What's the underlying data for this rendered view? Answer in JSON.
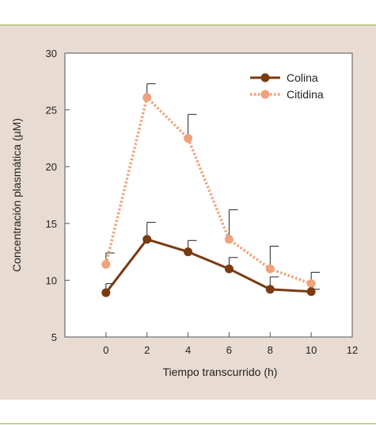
{
  "chart_data": {
    "type": "line",
    "xlabel": "Tiempo transcurrido (h)",
    "ylabel": "Concentración plasmática (µM)",
    "xlim": [
      -2,
      12
    ],
    "ylim": [
      5,
      30
    ],
    "xticks": [
      "0",
      "2",
      "4",
      "6",
      "8",
      "10",
      "12"
    ],
    "yticks": [
      "5",
      "10",
      "15",
      "20",
      "25",
      "30"
    ],
    "legend_position": "top-right",
    "grid": false,
    "series": [
      {
        "name": "Colina",
        "color": "#7b3a10",
        "style": "solid",
        "x": [
          0,
          2,
          4,
          6,
          8,
          10
        ],
        "y": [
          8.9,
          13.6,
          12.5,
          11.0,
          9.2,
          9.0
        ],
        "error_upper": [
          9.7,
          15.1,
          13.5,
          12.0,
          10.3,
          9.2
        ]
      },
      {
        "name": "Citidina",
        "color": "#efa27c",
        "style": "dotted",
        "x": [
          0,
          2,
          4,
          6,
          8,
          10
        ],
        "y": [
          11.4,
          26.1,
          22.5,
          13.6,
          11.0,
          9.7
        ],
        "error_upper": [
          12.4,
          27.3,
          24.6,
          16.2,
          13.0,
          10.7
        ]
      }
    ]
  }
}
